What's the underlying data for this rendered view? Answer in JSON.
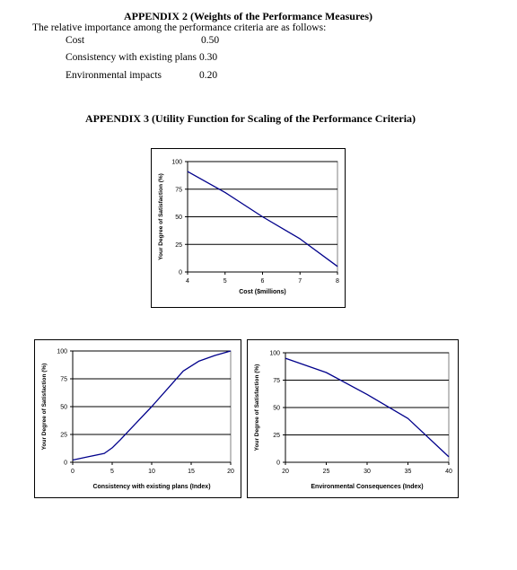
{
  "appendix2": {
    "title": "APPENDIX 2 (Weights of the Performance Measures)",
    "intro": "The relative importance among the performance criteria are as follows:",
    "weights": [
      {
        "name": "Cost",
        "value": "0.50"
      },
      {
        "name": "Consistency with existing plans",
        "value": "0.30"
      },
      {
        "name": "Environmental  impacts",
        "value": "0.20"
      }
    ]
  },
  "appendix3": {
    "title": "APPENDIX 3 (Utility Function for Scaling of the Performance Criteria)"
  },
  "chart_data": [
    {
      "type": "line",
      "xlabel": "Cost ($millions)",
      "ylabel": "Your Degree of Satisfaction (%)",
      "xlim": [
        4,
        8
      ],
      "ylim": [
        0,
        100
      ],
      "xticks": [
        "4",
        "5",
        "6",
        "7",
        "8"
      ],
      "yticks": [
        "0",
        "25",
        "50",
        "75",
        "100"
      ],
      "grid": true,
      "x": [
        4,
        5,
        6,
        7,
        8
      ],
      "y": [
        91,
        72,
        50,
        30,
        5
      ]
    },
    {
      "type": "line",
      "xlabel": "Consistency with existing plans (Index)",
      "ylabel": "Your Degree of Satisfaction (%)",
      "xlim": [
        0,
        20
      ],
      "ylim": [
        0,
        100
      ],
      "xticks": [
        "0",
        "5",
        "10",
        "15",
        "20"
      ],
      "yticks": [
        "0",
        "25",
        "50",
        "75",
        "100"
      ],
      "grid": true,
      "x": [
        0,
        2,
        4,
        5,
        6,
        8,
        10,
        12,
        14,
        16,
        18,
        20
      ],
      "y": [
        2,
        5,
        8,
        13,
        20,
        35,
        50,
        66,
        82,
        91,
        96,
        100
      ]
    },
    {
      "type": "line",
      "xlabel": "Environmental Consequences (Index)",
      "ylabel": "Your Degree of Satisfaction (%)",
      "xlim": [
        20,
        40
      ],
      "ylim": [
        0,
        100
      ],
      "xticks": [
        "20",
        "25",
        "30",
        "35",
        "40"
      ],
      "yticks": [
        "0",
        "25",
        "50",
        "75",
        "100"
      ],
      "grid": true,
      "x": [
        20,
        25,
        30,
        35,
        40
      ],
      "y": [
        95,
        82,
        62,
        40,
        5
      ]
    }
  ]
}
